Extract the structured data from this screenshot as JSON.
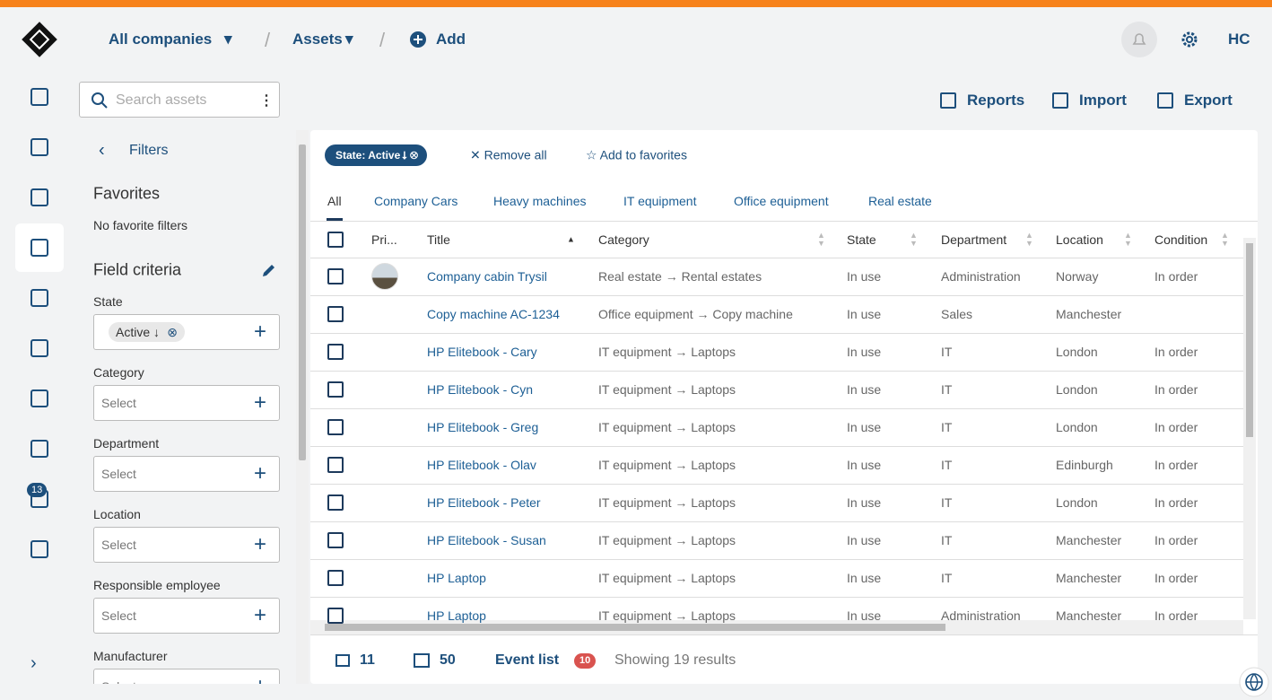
{
  "nav": {
    "company": "All companies",
    "section": "Assets",
    "add": "Add",
    "user": "HC",
    "badge": "13"
  },
  "search": {
    "placeholder": "Search assets"
  },
  "actions": [
    "Reports",
    "Import",
    "Export"
  ],
  "filters": {
    "title": "Filters",
    "favorites": "Favorites",
    "no_favorites": "No favorite filters",
    "field_criteria": "Field criteria",
    "fields": [
      {
        "label": "State",
        "chip": "Active ↓"
      },
      {
        "label": "Category",
        "placeholder": "Select"
      },
      {
        "label": "Department",
        "placeholder": "Select"
      },
      {
        "label": "Location",
        "placeholder": "Select"
      },
      {
        "label": "Responsible employee",
        "placeholder": "Select"
      },
      {
        "label": "Manufacturer",
        "placeholder": "Select"
      }
    ]
  },
  "toolbar": {
    "chip": "State: Active",
    "remove_all": "Remove all",
    "add_favorites": "Add to favorites"
  },
  "tabs": [
    "All",
    "Company Cars",
    "Heavy machines",
    "IT equipment",
    "Office equipment",
    "Real estate"
  ],
  "table": {
    "columns": [
      "Pri...",
      "Title",
      "Category",
      "State",
      "Department",
      "Location",
      "Condition"
    ],
    "rows": [
      [
        "Company cabin Trysil",
        "Real estate → Rental estates",
        "In use",
        "Administration",
        "Norway",
        "In order"
      ],
      [
        "Copy machine AC-1234",
        "Office equipment → Copy machine",
        "In use",
        "Sales",
        "Manchester",
        null
      ],
      [
        "HP Elitebook - Cary",
        "IT equipment → Laptops",
        "In use",
        "IT",
        "London",
        "In order"
      ],
      [
        "HP Elitebook - Cyn",
        "IT equipment → Laptops",
        "In use",
        "IT",
        "London",
        "In order"
      ],
      [
        "HP Elitebook - Greg",
        "IT equipment → Laptops",
        "In use",
        "IT",
        "London",
        "In order"
      ],
      [
        "HP Elitebook - Olav",
        "IT equipment → Laptops",
        "In use",
        "IT",
        "Edinburgh",
        "In order"
      ],
      [
        "HP Elitebook - Peter",
        "IT equipment → Laptops",
        "In use",
        "IT",
        "London",
        "In order"
      ],
      [
        "HP Elitebook - Susan",
        "IT equipment → Laptops",
        "In use",
        "IT",
        "Manchester",
        "In order"
      ],
      [
        "HP Laptop",
        "IT equipment → Laptops",
        "In use",
        "IT",
        "Manchester",
        "In order"
      ],
      [
        "HP Laptop",
        "IT equipment → Laptops",
        "In use",
        "Administration",
        "Manchester",
        "In order"
      ]
    ]
  },
  "footer": {
    "columns": "11",
    "rows": "50",
    "event_list": "Event list",
    "event_count": "10",
    "results": "Showing 19 results"
  }
}
